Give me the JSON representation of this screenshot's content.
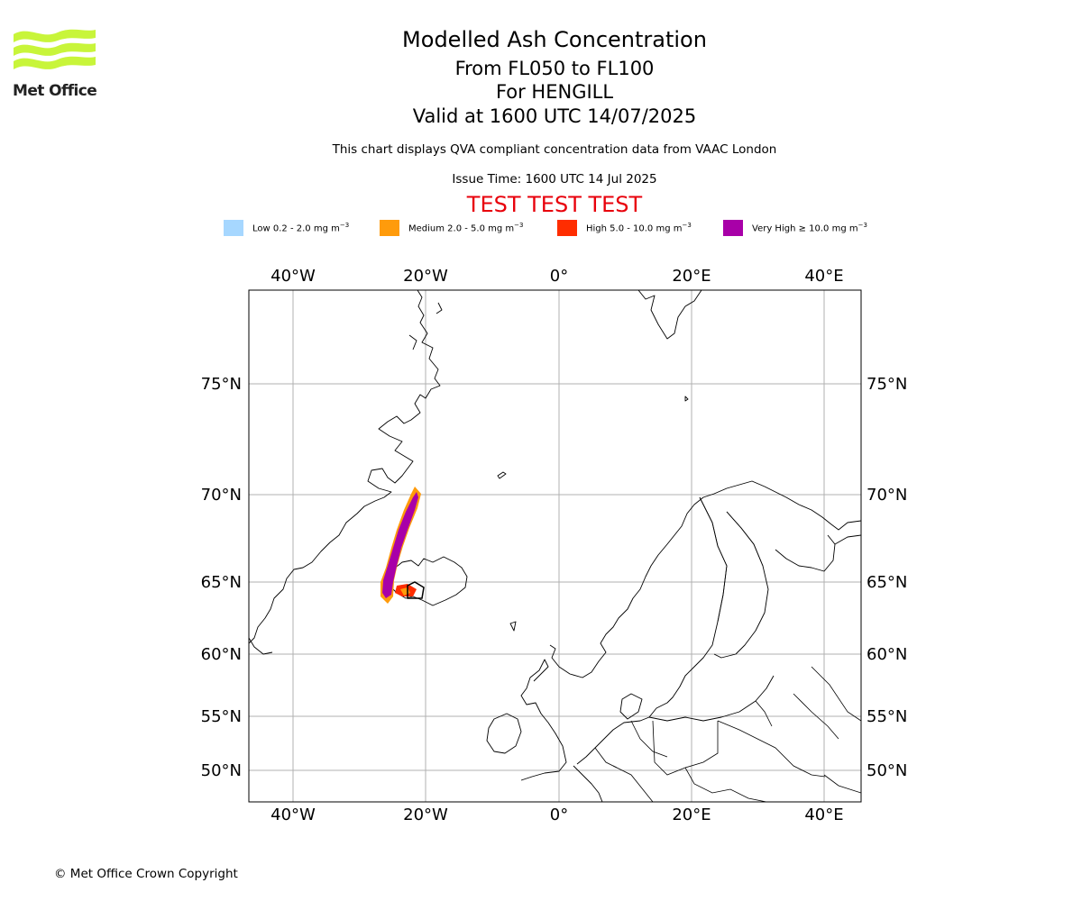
{
  "header": {
    "logo_text": "Met Office",
    "title": "Modelled Ash Concentration",
    "subtitle_levels": "From FL050 to FL100",
    "subtitle_volcano": "For HENGILL",
    "subtitle_valid": "Valid at 1600 UTC 14/07/2025",
    "note": "This chart displays QVA compliant concentration data from VAAC London",
    "issue_time": "Issue Time: 1600 UTC 14 Jul 2025",
    "test_banner": "TEST TEST TEST"
  },
  "legend": [
    {
      "label": "Low 0.2 - 2.0 mg m",
      "exp": "−3",
      "color": "#a6d7ff"
    },
    {
      "label": "Medium 2.0 - 5.0 mg m",
      "exp": "−3",
      "color": "#ff9b0b"
    },
    {
      "label": "High 5.0 - 10.0 mg m",
      "exp": "−3",
      "color": "#ff2d00"
    },
    {
      "label": "Very High  ≥  10.0 mg m",
      "exp": "−3",
      "color": "#a800a8"
    }
  ],
  "map": {
    "lon_ticks": [
      "40°W",
      "20°W",
      "0°",
      "20°E",
      "40°E"
    ],
    "lat_ticks": [
      "75°N",
      "70°N",
      "65°N",
      "60°N",
      "55°N",
      "50°N"
    ],
    "colors": {
      "coast": "#000000",
      "grid": "#b0b0b0",
      "very_high": "#a800a8",
      "high": "#ff2d00",
      "medium": "#ff9b0b"
    }
  },
  "footer": {
    "copyright": "© Met Office Crown Copyright"
  }
}
